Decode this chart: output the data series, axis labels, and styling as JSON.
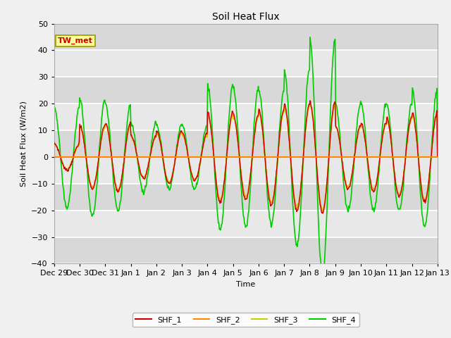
{
  "title": "Soil Heat Flux",
  "ylabel": "Soil Heat Flux (W/m2)",
  "xlabel": "Time",
  "ylim": [
    -40,
    50
  ],
  "background_color": "#f0f0f0",
  "plot_bg_color": "#e8e8e8",
  "grid_color": "white",
  "annotation_text": "TW_met",
  "annotation_box_color": "#ffff99",
  "annotation_text_color": "#cc0000",
  "series_colors": {
    "SHF_1": "#cc0000",
    "SHF_2": "#ff8800",
    "SHF_3": "#cccc00",
    "SHF_4": "#00cc00"
  },
  "xtick_labels": [
    "Dec 29",
    "Dec 30",
    "Dec 31",
    "Jan 1",
    "Jan 2",
    "Jan 3",
    "Jan 4",
    "Jan 5",
    "Jan 6",
    "Jan 7",
    "Jan 8",
    "Jan 9",
    "Jan 10",
    "Jan 11",
    "Jan 12",
    "Jan 13"
  ],
  "n_days": 15,
  "samples_per_day": 48,
  "day_amps_shf1": [
    5,
    12,
    13,
    8,
    10,
    9,
    17,
    16,
    18,
    20,
    21,
    12,
    13,
    15,
    17
  ],
  "day_amps_shf4": [
    19,
    22,
    20,
    13,
    12,
    12,
    27,
    26,
    25,
    33,
    44,
    20,
    20,
    20,
    26
  ]
}
